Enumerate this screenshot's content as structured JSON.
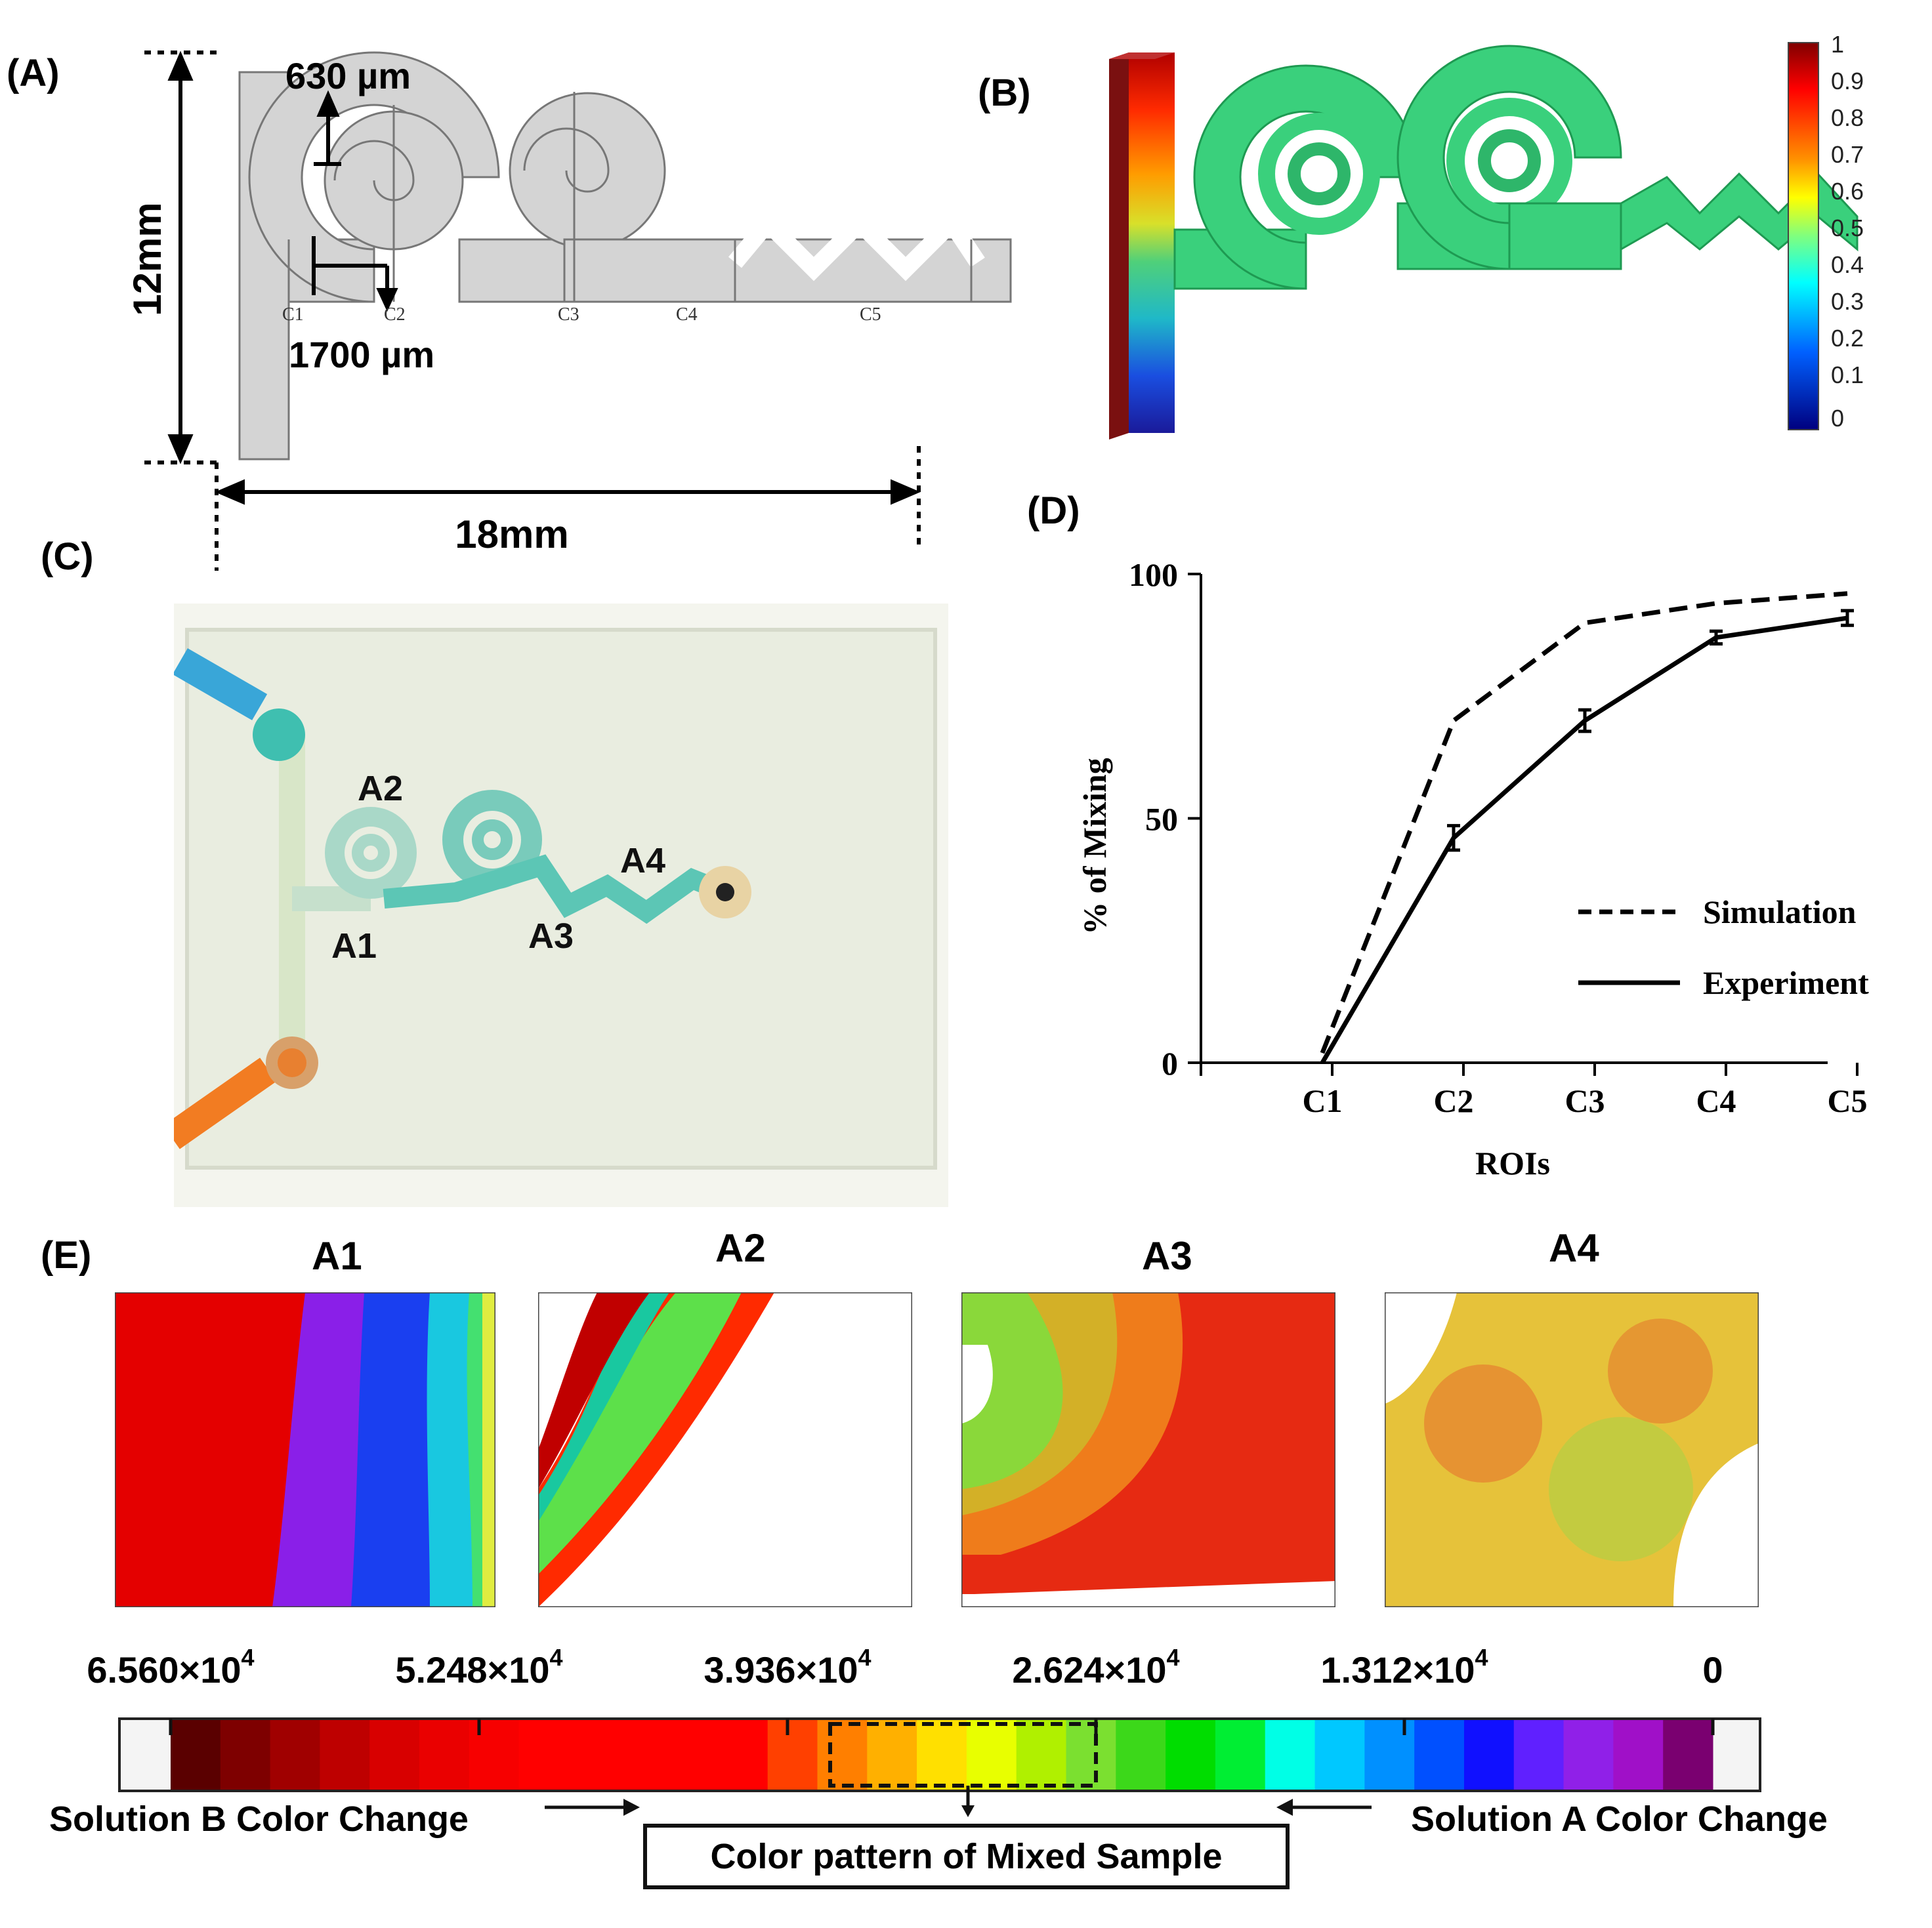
{
  "panels": {
    "a": "(A)",
    "b": "(B)",
    "c": "(C)",
    "d": "(D)",
    "e": "(E)"
  },
  "panel_a": {
    "dim_height": "12mm",
    "dim_width": "18mm",
    "dim_spiral": "630 µm",
    "dim_inlet": "1700 µm",
    "cross_sections": [
      "C1",
      "C2",
      "C3",
      "C4",
      "C5"
    ]
  },
  "panel_b": {
    "colorbar_ticks": [
      "1",
      "0.9",
      "0.8",
      "0.7",
      "0.6",
      "0.5",
      "0.4",
      "0.3",
      "0.2",
      "0.1",
      "0"
    ],
    "colors": {
      "min": "#00007f",
      "mid": "#2ecc71",
      "max": "#7f0000"
    }
  },
  "panel_c": {
    "areas": [
      "A1",
      "A2",
      "A3",
      "A4"
    ],
    "colors": {
      "dye": "#3fbfb0",
      "tube_blue": "#39a6d8",
      "tube_orange": "#f27c22",
      "chip_bg": "#eef0e6"
    }
  },
  "chart_data": {
    "type": "line",
    "categories": [
      "C1",
      "C2",
      "C3",
      "C4",
      "C5"
    ],
    "series": [
      {
        "name": "Simulation",
        "values": [
          2,
          70,
          90,
          94,
          96
        ],
        "style": "dashed"
      },
      {
        "name": "Experiment",
        "values": [
          0,
          46,
          70,
          87,
          91
        ],
        "errors": [
          0,
          2.5,
          2.2,
          1.3,
          1.5
        ],
        "style": "solid"
      }
    ],
    "xlabel": "ROIs",
    "ylabel": "% of Mixing",
    "ylim": [
      0,
      100
    ],
    "yticks": [
      0,
      50,
      100
    ],
    "legend": "right"
  },
  "panel_e": {
    "images": [
      {
        "label": "A1"
      },
      {
        "label": "A2"
      },
      {
        "label": "A3"
      },
      {
        "label": "A4"
      }
    ],
    "scale_ticks": [
      {
        "mantissa": "6.560×10",
        "exp": "4"
      },
      {
        "mantissa": "5.248×10",
        "exp": "4"
      },
      {
        "mantissa": "3.936×10",
        "exp": "4"
      },
      {
        "mantissa": "2.624×10",
        "exp": "4"
      },
      {
        "mantissa": "1.312×10",
        "exp": "4"
      },
      {
        "mantissa": "0",
        "exp": ""
      }
    ],
    "scale_colors": [
      "#5a0000",
      "#7e0000",
      "#a00000",
      "#be0000",
      "#d80000",
      "#ea0000",
      "#f70000",
      "#ff0000",
      "#ff0000",
      "#ff0000",
      "#ff0000",
      "#ff0000",
      "#ff4000",
      "#ff7f00",
      "#ffb000",
      "#ffe000",
      "#e8ff00",
      "#b0f000",
      "#7be030",
      "#3cd81a",
      "#00dd00",
      "#00ee33",
      "#00ffe6",
      "#00c8ff",
      "#0090ff",
      "#0050ff",
      "#1010ff",
      "#6020ff",
      "#9020e8",
      "#a010c8",
      "#7a0070"
    ],
    "solution_b": "Solution B Color Change",
    "solution_a": "Solution A Color Change",
    "mixed": "Color pattern of Mixed Sample"
  }
}
